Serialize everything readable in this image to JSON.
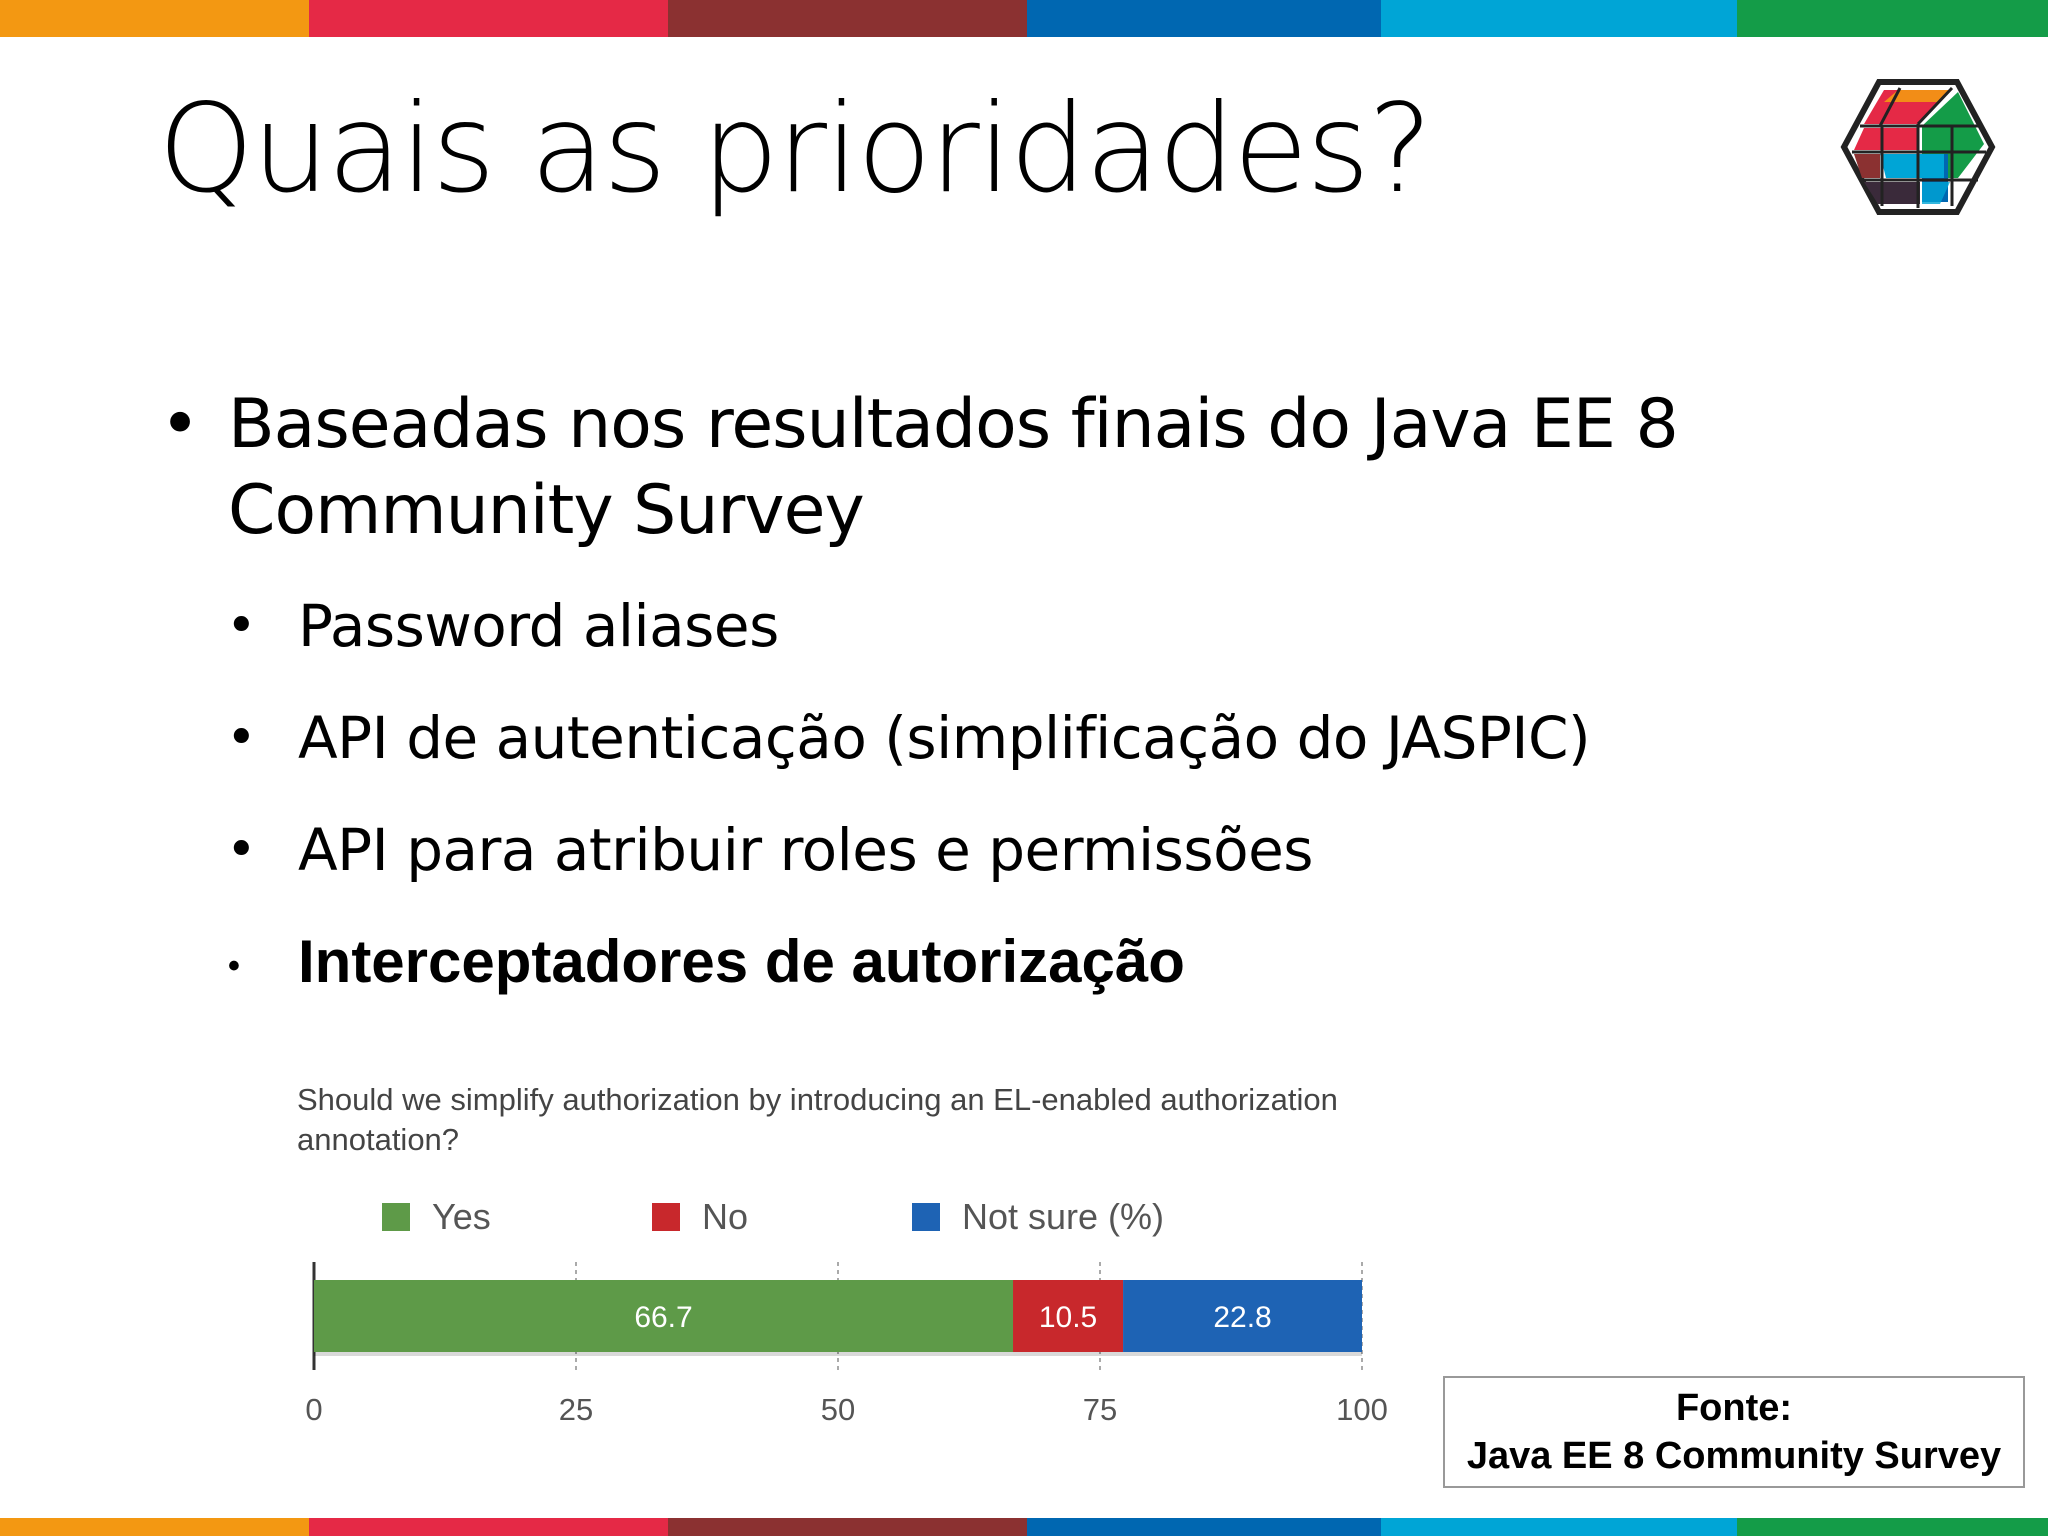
{
  "slide": {
    "title": "Quais as prioridades?",
    "stripe_colors": [
      "#f39812",
      "#e52946",
      "#8b3131",
      "#0067b1",
      "#00a5d6",
      "#149c48"
    ]
  },
  "bullets": {
    "main_line1": "Baseadas nos resultados finais do Java EE 8",
    "main_line2": "Community Survey",
    "sub": [
      "Password aliases",
      "API de autenticação (simplificação do JASPIC)",
      "API para atribuir roles e permissões",
      "Interceptadores de autorização"
    ]
  },
  "chart_question": "Should we simplify authorization by introducing an EL-enabled authorization annotation?",
  "chart_data": {
    "type": "bar",
    "orientation": "horizontal",
    "stacked": true,
    "series": [
      {
        "name": "Yes",
        "value": 66.7,
        "color": "#5e9a48"
      },
      {
        "name": "No",
        "value": 10.5,
        "color": "#c8282c"
      },
      {
        "name": "Not sure (%)",
        "value": 22.8,
        "color": "#1e63b4"
      }
    ],
    "xlim": [
      0,
      100
    ],
    "xticks": [
      "0",
      "25",
      "50",
      "75",
      "100"
    ],
    "legend_position": "top",
    "grid": true
  },
  "source_box": {
    "label": "Fonte:",
    "text": "Java EE 8 Community Survey"
  }
}
